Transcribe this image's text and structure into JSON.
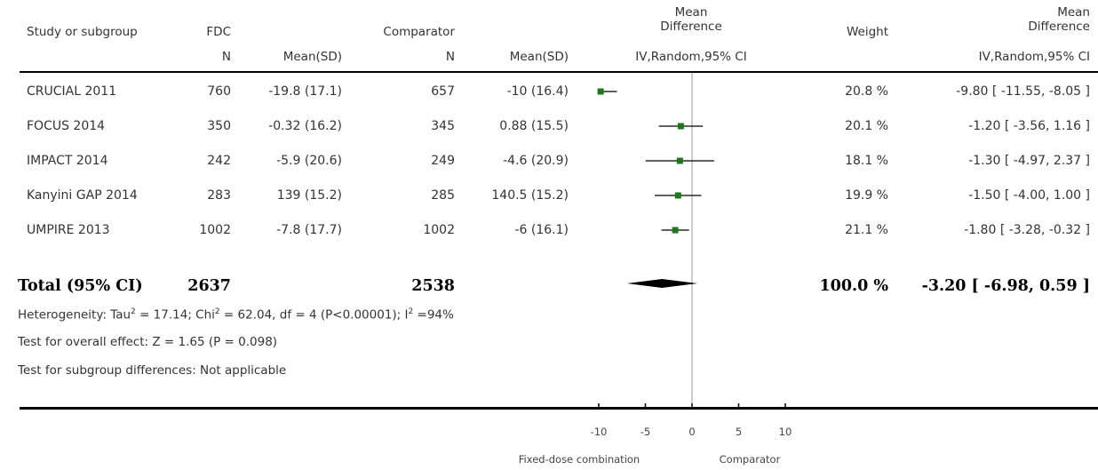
{
  "header": {
    "study": "Study or subgroup",
    "fdc": "FDC",
    "comparator": "Comparator",
    "md_line1": "Mean",
    "md_line2": "Difference",
    "weight": "Weight",
    "md2_line1": "Mean",
    "md2_line2": "Difference",
    "n1": "N",
    "mean_sd1": "Mean(SD)",
    "n2": "N",
    "mean_sd2": "Mean(SD)",
    "method_plot": "IV,Random,95% CI",
    "method_col": "IV,Random,95% CI"
  },
  "rows": [
    {
      "study": "CRUCIAL 2011",
      "n1": "760",
      "msd1": "-19.8 (17.1)",
      "n2": "657",
      "msd2": "-10 (16.4)",
      "weight": "20.8 %",
      "ci_text": "-9.80 [ -11.55, -8.05 ]"
    },
    {
      "study": "FOCUS 2014",
      "n1": "350",
      "msd1": "-0.32 (16.2)",
      "n2": "345",
      "msd2": "0.88 (15.5)",
      "weight": "20.1 %",
      "ci_text": "-1.20 [ -3.56, 1.16 ]"
    },
    {
      "study": "IMPACT 2014",
      "n1": "242",
      "msd1": "-5.9 (20.6)",
      "n2": "249",
      "msd2": "-4.6 (20.9)",
      "weight": "18.1 %",
      "ci_text": "-1.30 [ -4.97, 2.37 ]"
    },
    {
      "study": "Kanyini GAP 2014",
      "n1": "283",
      "msd1": "139 (15.2)",
      "n2": "285",
      "msd2": "140.5 (15.2)",
      "weight": "19.9 %",
      "ci_text": "-1.50 [ -4.00, 1.00 ]"
    },
    {
      "study": "UMPIRE 2013",
      "n1": "1002",
      "msd1": "-7.8 (17.7)",
      "n2": "1002",
      "msd2": "-6 (16.1)",
      "weight": "21.1 %",
      "ci_text": "-1.80 [ -3.28, -0.32 ]"
    }
  ],
  "total": {
    "label": "Total (95% CI)",
    "n1": "2637",
    "n2": "2538",
    "weight": "100.0 %",
    "ci_text": "-3.20 [ -6.98, 0.59 ]"
  },
  "footer": {
    "het_a": "Heterogeneity: Tau",
    "het_sup1": "2",
    "het_b": " = 17.14; Chi",
    "het_sup2": "2",
    "het_c": " = 62.04, df = 4 (P<0.00001); I",
    "het_sup3": "2",
    "het_d": " =94%",
    "overall": "Test for overall effect: Z = 1.65 (P = 0.098)",
    "subgroup": "Test for subgroup differences: Not applicable"
  },
  "axis": {
    "ticks": [
      "-10",
      "-5",
      "0",
      "5",
      "10"
    ],
    "left_label": "Fixed-dose combination",
    "right_label": "Comparator"
  },
  "colors": {
    "marker": "#1a7a1a",
    "line": "#000000"
  },
  "chart_data": {
    "type": "forest",
    "xlim": [
      -10,
      10
    ],
    "xticks": [
      -10,
      -5,
      0,
      5,
      10
    ],
    "studies": [
      {
        "name": "CRUCIAL 2011",
        "md": -9.8,
        "lo": -11.55,
        "hi": -8.05,
        "weight": 20.8
      },
      {
        "name": "FOCUS 2014",
        "md": -1.2,
        "lo": -3.56,
        "hi": 1.16,
        "weight": 20.1
      },
      {
        "name": "IMPACT 2014",
        "md": -1.3,
        "lo": -4.97,
        "hi": 2.37,
        "weight": 18.1
      },
      {
        "name": "Kanyini GAP 2014",
        "md": -1.5,
        "lo": -4.0,
        "hi": 1.0,
        "weight": 19.9
      },
      {
        "name": "UMPIRE 2013",
        "md": -1.8,
        "lo": -3.28,
        "hi": -0.32,
        "weight": 21.1
      }
    ],
    "pooled": {
      "md": -3.2,
      "lo": -6.98,
      "hi": 0.59
    }
  }
}
